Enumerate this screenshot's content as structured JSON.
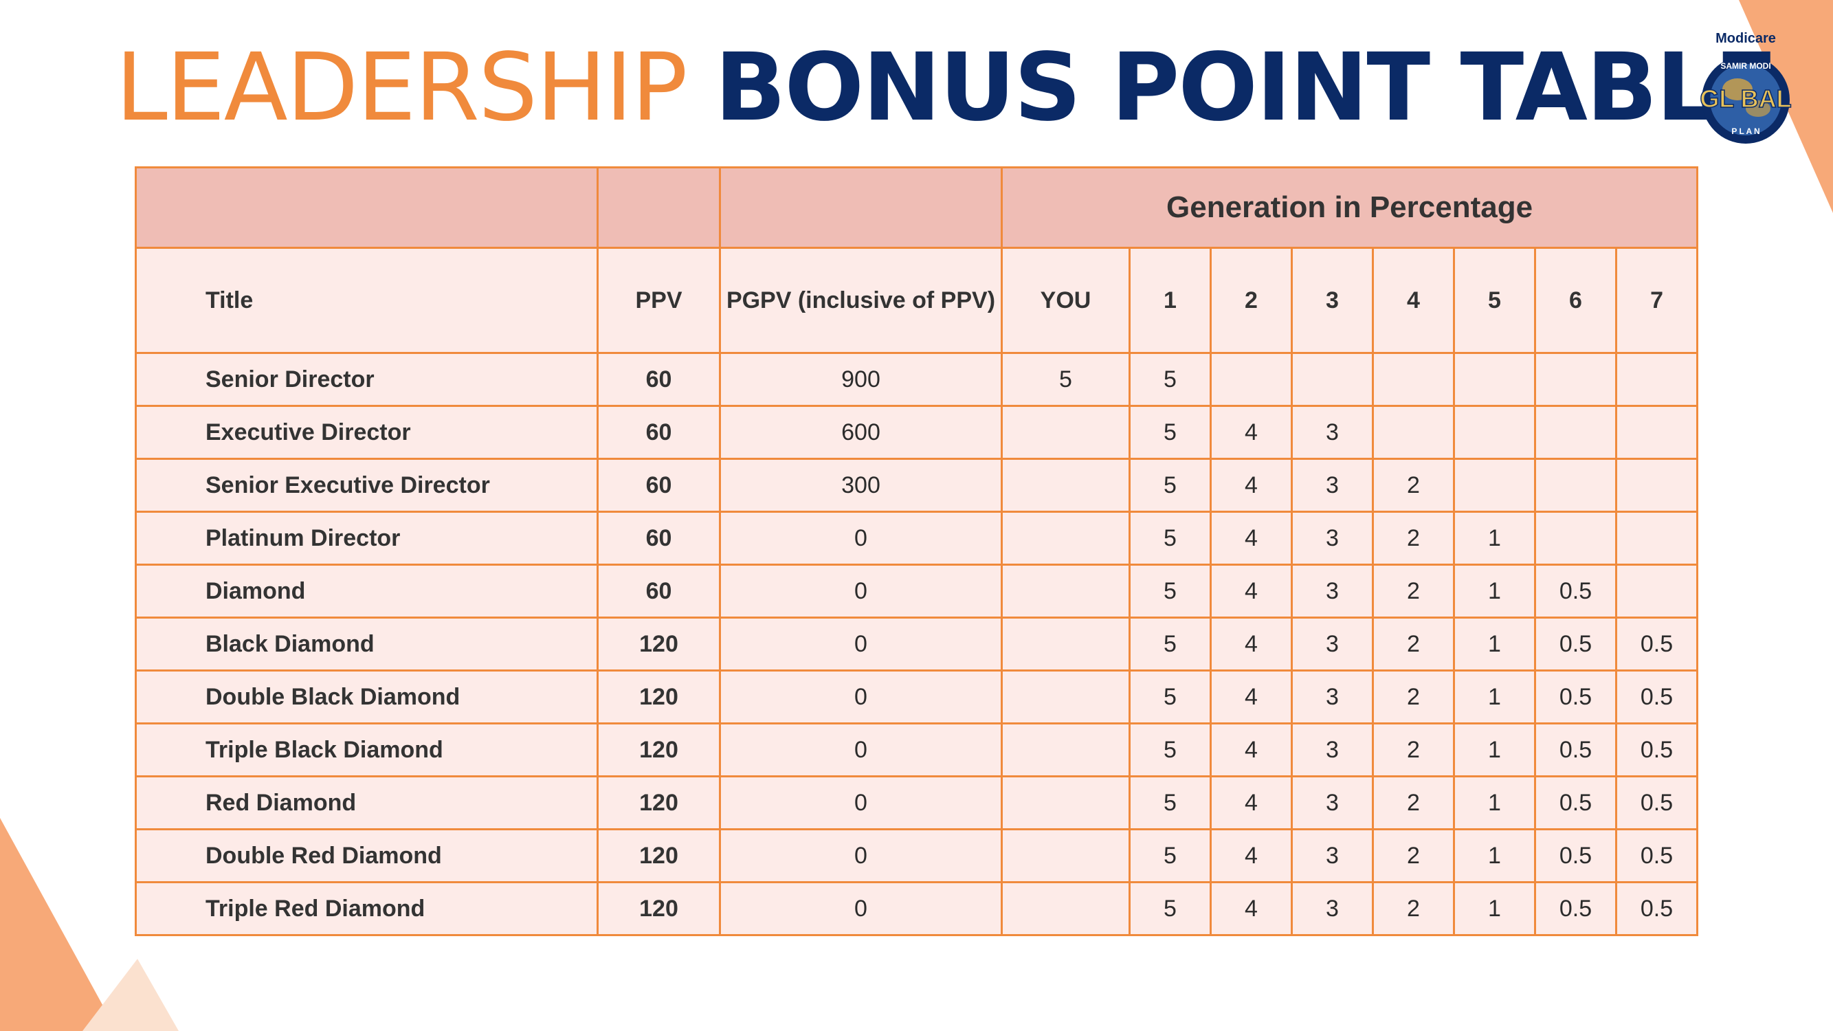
{
  "colors": {
    "accent_orange": "#F08A3C",
    "navy": "#0B2A66",
    "header_fill": "#EFBDB5",
    "row_fill": "#FDEBE8"
  },
  "heading": {
    "part1": "LEADERSHIP",
    "part2": "BONUS POINT TABLE"
  },
  "logo": {
    "brand": "Modicare",
    "arc_text": "SAMIR MODI",
    "word": "GL BAL",
    "plan": "P L A N"
  },
  "table": {
    "group_header": "Generation in Percentage",
    "columns": [
      "Title",
      "PPV",
      "PGPV (inclusive of PPV)",
      "YOU",
      "1",
      "2",
      "3",
      "4",
      "5",
      "6",
      "7"
    ],
    "rows": [
      [
        "Senior Director",
        "60",
        "900",
        "5",
        "5",
        "",
        "",
        "",
        "",
        "",
        ""
      ],
      [
        "Executive Director",
        "60",
        "600",
        "",
        "5",
        "4",
        "3",
        "",
        "",
        "",
        ""
      ],
      [
        "Senior Executive Director",
        "60",
        "300",
        "",
        "5",
        "4",
        "3",
        "2",
        "",
        "",
        ""
      ],
      [
        "Platinum Director",
        "60",
        "0",
        "",
        "5",
        "4",
        "3",
        "2",
        "1",
        "",
        ""
      ],
      [
        "Diamond",
        "60",
        "0",
        "",
        "5",
        "4",
        "3",
        "2",
        "1",
        "0.5",
        ""
      ],
      [
        "Black Diamond",
        "120",
        "0",
        "",
        "5",
        "4",
        "3",
        "2",
        "1",
        "0.5",
        "0.5"
      ],
      [
        "Double Black Diamond",
        "120",
        "0",
        "",
        "5",
        "4",
        "3",
        "2",
        "1",
        "0.5",
        "0.5"
      ],
      [
        "Triple Black Diamond",
        "120",
        "0",
        "",
        "5",
        "4",
        "3",
        "2",
        "1",
        "0.5",
        "0.5"
      ],
      [
        "Red Diamond",
        "120",
        "0",
        "",
        "5",
        "4",
        "3",
        "2",
        "1",
        "0.5",
        "0.5"
      ],
      [
        "Double Red Diamond",
        "120",
        "0",
        "",
        "5",
        "4",
        "3",
        "2",
        "1",
        "0.5",
        "0.5"
      ],
      [
        "Triple Red Diamond",
        "120",
        "0",
        "",
        "5",
        "4",
        "3",
        "2",
        "1",
        "0.5",
        "0.5"
      ]
    ]
  }
}
